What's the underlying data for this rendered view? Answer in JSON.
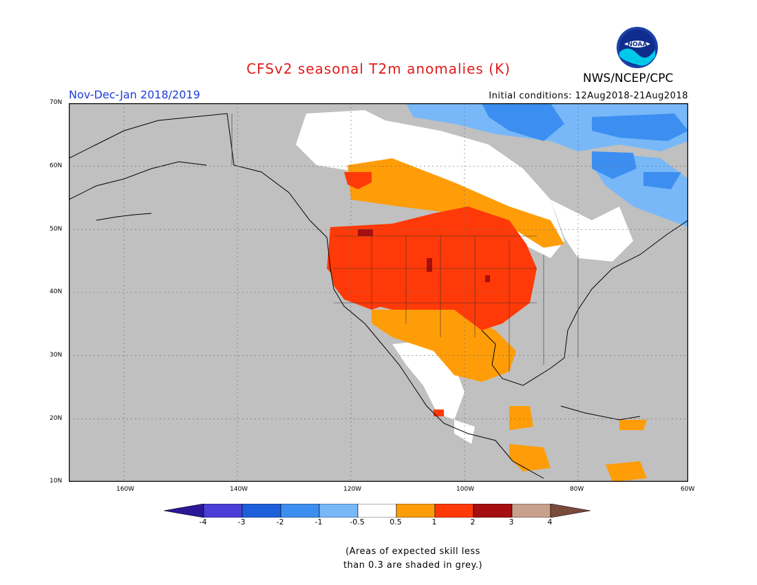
{
  "header": {
    "title": "CFSv2 seasonal T2m anomalies (K)",
    "period": "Nov-Dec-Jan 2018/2019",
    "initial_conditions": "Initial conditions: 12Aug2018-21Aug2018",
    "agency": "NWS/NCEP/CPC",
    "logo_text": "NOAA"
  },
  "axes": {
    "lat_labels": [
      "70N",
      "60N",
      "50N",
      "40N",
      "30N",
      "20N",
      "10N"
    ],
    "lon_labels": [
      "160W",
      "140W",
      "120W",
      "100W",
      "80W",
      "60W"
    ]
  },
  "colorbar": {
    "ticks": [
      "-4",
      "-3",
      "-2",
      "-1",
      "-0.5",
      "0.5",
      "1",
      "2",
      "3",
      "4"
    ],
    "colors": [
      "#2a1896",
      "#4a3ed6",
      "#1e5fdc",
      "#3c8ff0",
      "#78b8f8",
      "#ffffff",
      "#ff9d08",
      "#ff3a08",
      "#a50f0f",
      "#c9a08c",
      "#7a4a3a"
    ]
  },
  "map_colors": {
    "grey_no_skill": "#c0c0c0",
    "ocean": "#c0c0c0"
  },
  "footnote": {
    "line1": "(Areas of expected skill less",
    "line2": "than 0.3 are shaded in grey.)"
  }
}
